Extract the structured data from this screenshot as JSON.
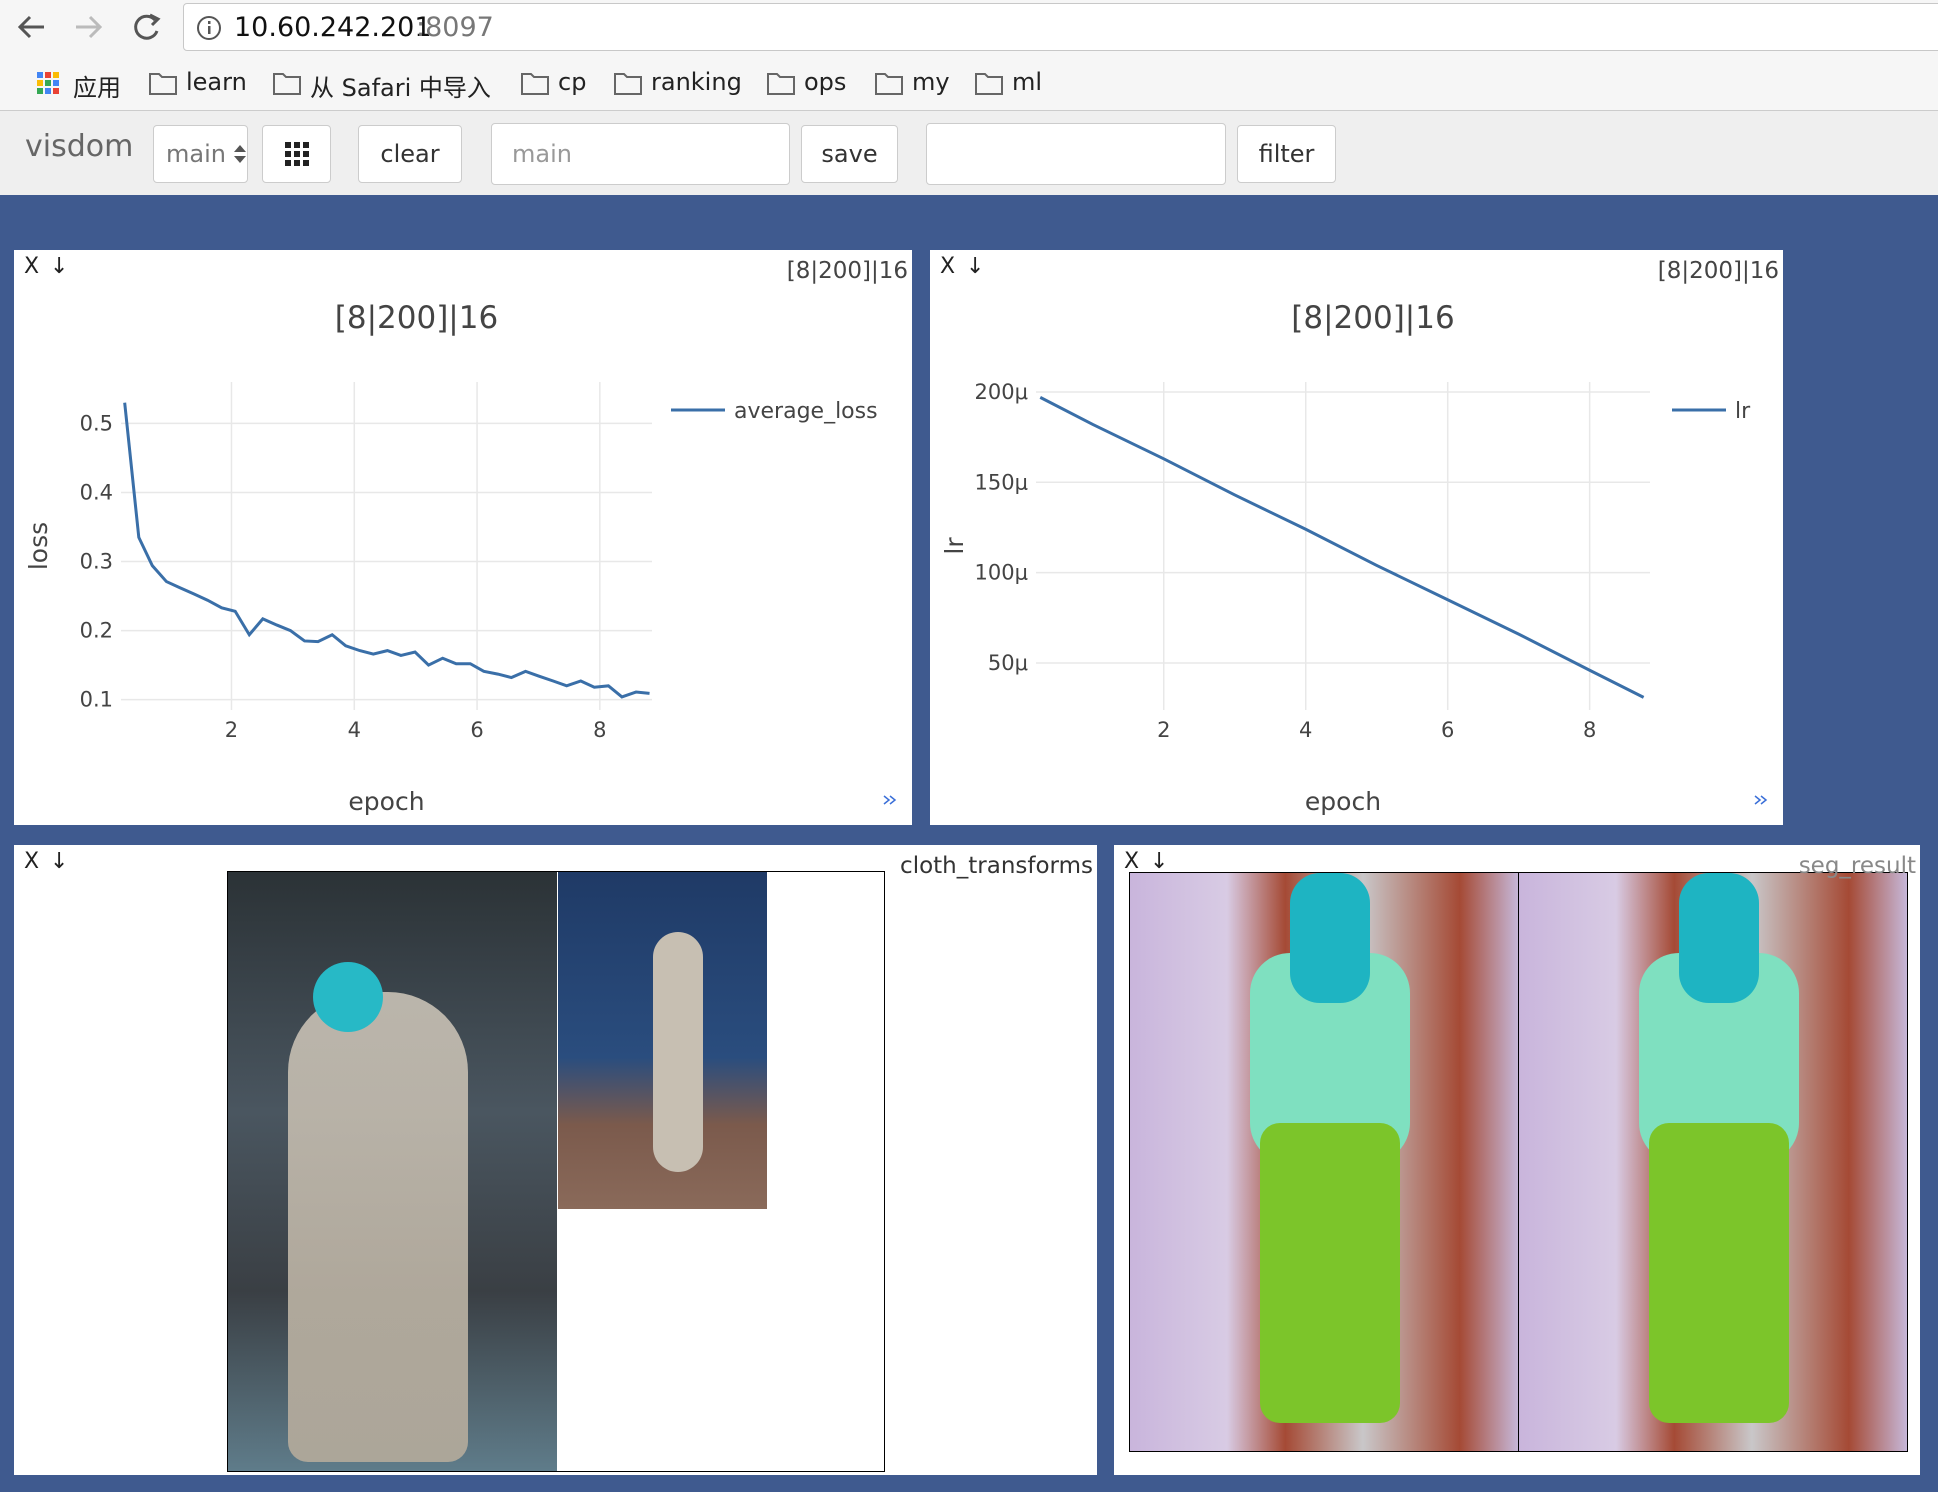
{
  "browser": {
    "address_host": "10.60.242.201",
    "address_port": ":8097",
    "bookmarks": [
      "应用",
      "learn",
      "从 Safari 中导入",
      "cp",
      "ranking",
      "ops",
      "my",
      "ml"
    ]
  },
  "toolbar": {
    "brand": "visdom",
    "env_select": "main",
    "clear": "clear",
    "env_input": "main",
    "save": "save",
    "filter": "filter"
  },
  "pane_controls": {
    "close": "X",
    "download": "↓"
  },
  "image_panes": [
    {
      "title": "cloth_transforms"
    },
    {
      "title": "seg_result"
    }
  ],
  "chart_data": [
    {
      "type": "line",
      "title": "[8|200]|16",
      "x_label": "epoch",
      "y_label": "loss",
      "grid": true,
      "legend": "right",
      "x": [
        0.26,
        0.49,
        0.71,
        0.94,
        1.16,
        1.39,
        1.61,
        1.84,
        2.06,
        2.29,
        2.51,
        2.74,
        2.96,
        3.19,
        3.41,
        3.64,
        3.86,
        4.09,
        4.31,
        4.54,
        4.76,
        4.99,
        5.21,
        5.44,
        5.66,
        5.89,
        6.11,
        6.34,
        6.56,
        6.79,
        7.01,
        7.24,
        7.46,
        7.69,
        7.91,
        8.14,
        8.36,
        8.59,
        8.81
      ],
      "series": [
        {
          "name": "average_loss",
          "color": "#3a6fa8",
          "values": [
            0.53,
            0.335,
            0.294,
            0.271,
            0.262,
            0.253,
            0.244,
            0.233,
            0.228,
            0.194,
            0.217,
            0.208,
            0.2,
            0.185,
            0.184,
            0.194,
            0.178,
            0.171,
            0.166,
            0.171,
            0.164,
            0.169,
            0.15,
            0.16,
            0.152,
            0.152,
            0.141,
            0.137,
            0.132,
            0.141,
            0.134,
            0.127,
            0.12,
            0.127,
            0.118,
            0.12,
            0.104,
            0.111,
            0.109
          ]
        }
      ],
      "xlim": [
        0.2,
        8.85
      ],
      "xticks": [
        2,
        4,
        6,
        8
      ],
      "ylim": [
        0.085,
        0.56
      ],
      "yticks": [
        0.1,
        0.2,
        0.3,
        0.4,
        0.5
      ]
    },
    {
      "type": "line",
      "title": "[8|200]|16",
      "x_label": "epoch",
      "y_label": "lr",
      "grid": true,
      "legend": "right",
      "x": [
        0.26,
        1,
        2,
        3,
        4,
        5,
        6,
        7,
        8,
        8.76
      ],
      "series": [
        {
          "name": "lr",
          "color": "#3a6fa8",
          "values": [
            0.000197,
            0.000182,
            0.000163,
            0.000143,
            0.000124,
            0.000104,
            8.5e-05,
            6.6e-05,
            4.6e-05,
            3.1e-05
          ]
        }
      ],
      "xlim": [
        0.2,
        8.85
      ],
      "xticks": [
        2,
        4,
        6,
        8
      ],
      "ylim": [
        2.4e-05,
        0.0002055
      ],
      "yticks": [
        {
          "value": 5e-05,
          "label": "50μ"
        },
        {
          "value": 0.0001,
          "label": "100μ"
        },
        {
          "value": 0.00015,
          "label": "150μ"
        },
        {
          "value": 0.0002,
          "label": "200μ"
        }
      ]
    }
  ]
}
